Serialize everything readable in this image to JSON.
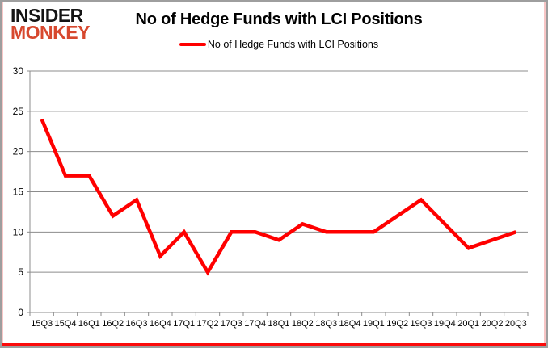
{
  "logo": {
    "line1": "INSIDER",
    "line2": "MONKEY",
    "line1_color": "#141414",
    "line2_color": "#d7482e"
  },
  "header": {
    "title": "No of Hedge Funds with LCI Positions",
    "legend_label": "No of Hedge Funds with LCI Positions"
  },
  "chart_data": {
    "type": "line",
    "title": "No of Hedge Funds with LCI Positions",
    "legend_position": "top-center",
    "grid": "horizontal",
    "categories": [
      "15Q3",
      "15Q4",
      "16Q1",
      "16Q2",
      "16Q3",
      "16Q4",
      "17Q1",
      "17Q2",
      "17Q3",
      "17Q4",
      "18Q1",
      "18Q2",
      "18Q3",
      "18Q4",
      "19Q1",
      "19Q2",
      "19Q3",
      "19Q4",
      "20Q1",
      "20Q2",
      "20Q3"
    ],
    "series": [
      {
        "name": "No of Hedge Funds with LCI Positions",
        "values": [
          24,
          17,
          17,
          12,
          14,
          7,
          10,
          5,
          10,
          10,
          9,
          11,
          10,
          10,
          10,
          12,
          14,
          11,
          8,
          9,
          10
        ],
        "color": "#ff0000"
      }
    ],
    "xlabel": "",
    "ylabel": "",
    "ylim": [
      0,
      30
    ],
    "yticks": [
      0,
      5,
      10,
      15,
      20,
      25,
      30
    ],
    "gridline_color": "#8c8c8c",
    "axis_color": "#8c8c8c",
    "label_color": "#000000"
  }
}
